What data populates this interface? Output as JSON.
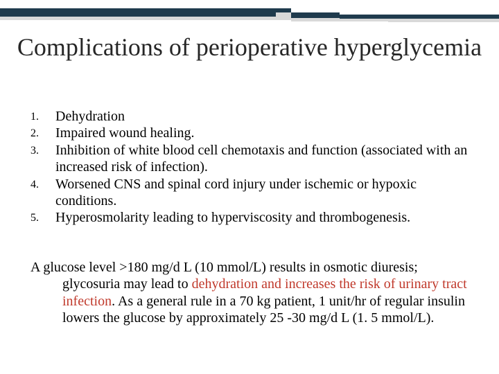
{
  "decor": {
    "dark_color": "#1f3b4d",
    "light_color": "#d9d9d9"
  },
  "title": "Complications of perioperative hyperglycemia",
  "items": [
    {
      "n": "1.",
      "text": "Dehydration"
    },
    {
      "n": "2.",
      "text": "Impaired wound healing."
    },
    {
      "n": "3.",
      "text": "Inhibition of white blood cell chemotaxis and function (associated with an increased risk of infection)."
    },
    {
      "n": "4.",
      "text": "Worsened CNS and spinal cord injury under ischemic or hypoxic conditions."
    },
    {
      "n": "5.",
      "text": "Hyperosmolarity leading to hyperviscosity and thrombogenesis."
    }
  ],
  "para": {
    "seg1": "A glucose level >180 mg/d L (10 mmol/L) results in osmotic diuresis; glycosuria may lead to ",
    "hl": "dehydration and increases the risk of urinary tract infection",
    "seg2": ". As a general rule in a 70 kg patient, 1 unit/hr of regular insulin lowers the glucose by approximately 25 -30 mg/d L (1. 5 mmol/L)."
  }
}
